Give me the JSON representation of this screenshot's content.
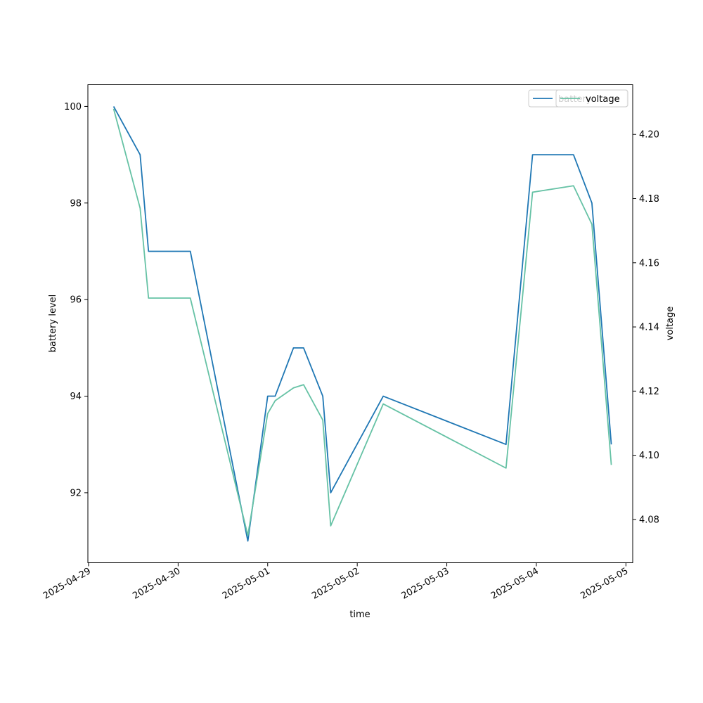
{
  "chart_data": {
    "type": "line",
    "xlabel": "time",
    "ylabel_left": "battery level",
    "ylabel_right": "voltage",
    "x_ticks": [
      "2025-04-29",
      "2025-04-30",
      "2025-05-01",
      "2025-05-02",
      "2025-05-03",
      "2025-05-04",
      "2025-05-05"
    ],
    "yleft_ticks": [
      92,
      94,
      96,
      98,
      100
    ],
    "yright_ticks": [
      4.08,
      4.1,
      4.12,
      4.14,
      4.16,
      4.18,
      4.2
    ],
    "yleft_range": [
      90.55,
      100.45
    ],
    "yright_range": [
      4.0665,
      4.2155
    ],
    "x_range": [
      "2025-04-28 23:49",
      "2025-05-05 01:49"
    ],
    "grid": false,
    "legend_placement": "top-right",
    "series": [
      {
        "name": "battery",
        "axis": "left",
        "color": "#1f77b4",
        "x": [
          "2025-04-29 06:43",
          "2025-04-29 13:49",
          "2025-04-29 16:04",
          "2025-04-30 03:16",
          "2025-04-30 18:41",
          "2025-05-01 00:00",
          "2025-05-01 02:00",
          "2025-05-01 06:55",
          "2025-05-01 09:37",
          "2025-05-01 14:46",
          "2025-05-01 16:53",
          "2025-05-02 06:58",
          "2025-05-03 15:52",
          "2025-05-03 22:59",
          "2025-05-04 09:57",
          "2025-05-04 14:53",
          "2025-05-04 20:05"
        ],
        "values": [
          100,
          99,
          97,
          97,
          91,
          94,
          94,
          95,
          95,
          94,
          92,
          94,
          93,
          99,
          99,
          98,
          93
        ]
      },
      {
        "name": "voltage",
        "axis": "right",
        "color": "#66c2a5",
        "x": [
          "2025-04-29 06:43",
          "2025-04-29 13:49",
          "2025-04-29 16:04",
          "2025-04-30 03:16",
          "2025-04-30 18:41",
          "2025-05-01 00:00",
          "2025-05-01 02:00",
          "2025-05-01 06:55",
          "2025-05-01 09:37",
          "2025-05-01 14:46",
          "2025-05-01 16:53",
          "2025-05-02 06:58",
          "2025-05-03 15:52",
          "2025-05-03 22:59",
          "2025-05-04 09:57",
          "2025-05-04 14:53",
          "2025-05-04 20:05"
        ],
        "values": [
          4.208,
          4.177,
          4.149,
          4.149,
          4.075,
          4.113,
          4.117,
          4.121,
          4.122,
          4.111,
          4.078,
          4.116,
          4.096,
          4.182,
          4.184,
          4.172,
          4.097
        ]
      }
    ],
    "legend": [
      {
        "label": "battery",
        "color": "#1f77b4"
      },
      {
        "label": "voltage",
        "color": "#66c2a5"
      }
    ]
  }
}
